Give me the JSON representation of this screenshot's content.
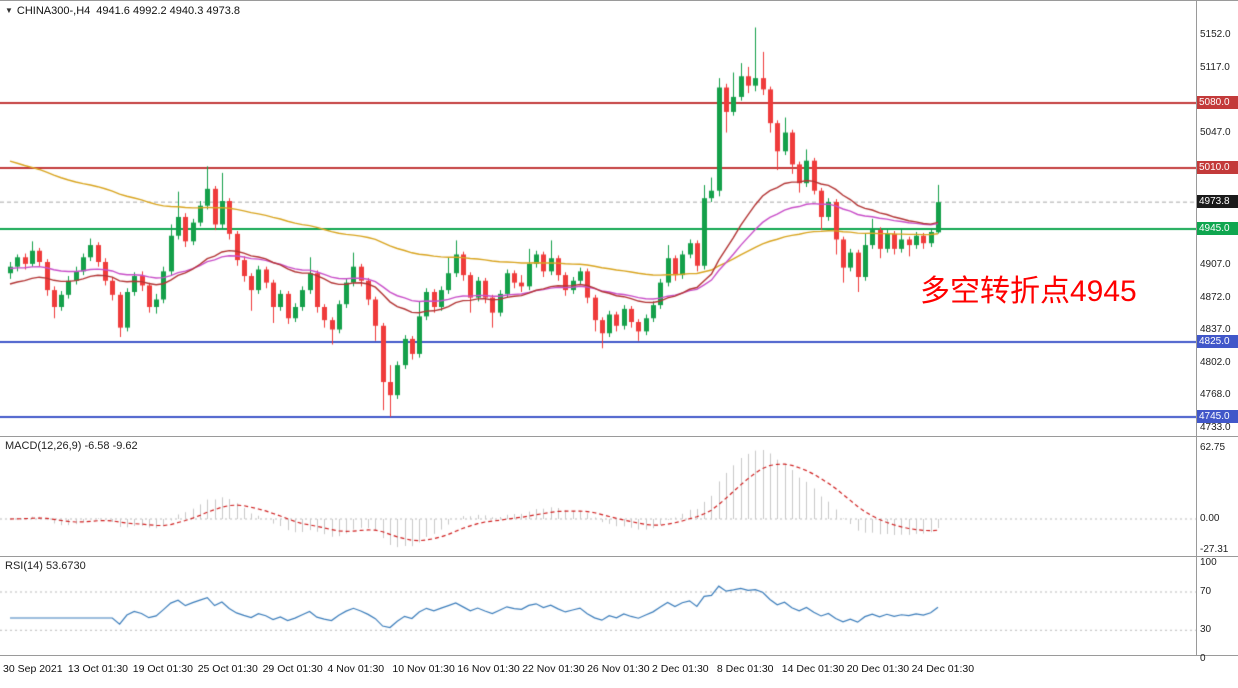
{
  "window": {
    "symbol_line": {
      "symbol": "CHINA300-,H4",
      "ohlc": "4941.6 4992.2 4940.3 4973.8"
    }
  },
  "annotation": {
    "text": "多空转折点4945",
    "color": "#ff0000"
  },
  "chart_data": {
    "type": "candlestick",
    "symbol": "CHINA300",
    "timeframe": "H4",
    "current_bar": {
      "open": 4941.6,
      "high": 4992.2,
      "low": 4940.3,
      "close": 4973.8
    },
    "colors": {
      "candle_up": "#14a04a",
      "candle_down": "#ef3b3b",
      "current_price_line": "#a8a8a8",
      "grid_dotted": "#bbbbbb"
    },
    "price_axis": {
      "plain_labels": [
        5152,
        5117,
        5047,
        4907,
        4872,
        4837,
        4802,
        4768,
        4733
      ],
      "min": 4733,
      "max": 5152
    },
    "levels": [
      {
        "price": 5080,
        "color": "#c33a3a",
        "label": "5080.0"
      },
      {
        "price": 5010,
        "color": "#c33a3a",
        "label": "5010.0"
      },
      {
        "price": 4945,
        "color": "#0fa64f",
        "label": "4945.0"
      },
      {
        "price": 4825,
        "color": "#4157c9",
        "label": "4825.0"
      },
      {
        "price": 4745,
        "color": "#4157c9",
        "label": "4745.0"
      }
    ],
    "current_price": {
      "value": 4973.8,
      "label": "4973.8",
      "badge_color": "#1a1a1a"
    },
    "moving_averages": [
      {
        "name": "ma-slow",
        "color": "#d9a520",
        "alpha": 0.022,
        "seed": 5020
      },
      {
        "name": "ma-mid",
        "color": "#c94fc9",
        "alpha": 0.05,
        "seed": 4903
      },
      {
        "name": "ma-fast",
        "color": "#b33535",
        "alpha": 0.075,
        "seed": 4885
      }
    ],
    "indicators": {
      "macd": {
        "label": "MACD(12,26,9) -6.58 -9.62",
        "params": [
          12,
          26,
          9
        ],
        "macd_value": -6.58,
        "signal_value": -9.62,
        "axis": [
          62.75,
          0.0,
          -27.31
        ],
        "histogram_color": "#c9c9c9",
        "signal_color": "#d02020"
      },
      "rsi": {
        "label": "RSI(14) 53.6730",
        "period": 14,
        "value": 53.673,
        "axis": [
          100,
          70,
          30,
          0
        ],
        "line_color": "#3b7dbb"
      }
    },
    "time_labels": [
      "30 Sep 2021",
      "13 Oct 01:30",
      "19 Oct 01:30",
      "25 Oct 01:30",
      "29 Oct 01:30",
      "4 Nov 01:30",
      "10 Nov 01:30",
      "16 Nov 01:30",
      "22 Nov 01:30",
      "26 Nov 01:30",
      "2 Dec 01:30",
      "8 Dec 01:30",
      "14 Dec 01:30",
      "20 Dec 01:30",
      "24 Dec 01:30"
    ],
    "candles": [
      [
        4898,
        4910,
        4892,
        4905
      ],
      [
        4905,
        4918,
        4900,
        4915
      ],
      [
        4915,
        4919,
        4902,
        4908
      ],
      [
        4908,
        4932,
        4905,
        4922
      ],
      [
        4922,
        4925,
        4905,
        4910
      ],
      [
        4910,
        4913,
        4874,
        4880
      ],
      [
        4880,
        4884,
        4850,
        4862
      ],
      [
        4862,
        4879,
        4858,
        4875
      ],
      [
        4875,
        4895,
        4871,
        4890
      ],
      [
        4890,
        4905,
        4886,
        4900
      ],
      [
        4900,
        4919,
        4896,
        4915
      ],
      [
        4915,
        4935,
        4911,
        4928
      ],
      [
        4928,
        4931,
        4905,
        4910
      ],
      [
        4910,
        4914,
        4885,
        4890
      ],
      [
        4890,
        4894,
        4869,
        4875
      ],
      [
        4875,
        4878,
        4830,
        4840
      ],
      [
        4840,
        4882,
        4836,
        4878
      ],
      [
        4878,
        4899,
        4874,
        4895
      ],
      [
        4895,
        4900,
        4879,
        4885
      ],
      [
        4885,
        4888,
        4856,
        4862
      ],
      [
        4862,
        4876,
        4855,
        4870
      ],
      [
        4870,
        4905,
        4866,
        4900
      ],
      [
        4900,
        4950,
        4896,
        4938
      ],
      [
        4938,
        4985,
        4934,
        4958
      ],
      [
        4958,
        4962,
        4926,
        4932
      ],
      [
        4932,
        4956,
        4928,
        4952
      ],
      [
        4952,
        4975,
        4948,
        4970
      ],
      [
        4970,
        5012,
        4966,
        4988
      ],
      [
        4988,
        4991,
        4944,
        4950
      ],
      [
        4950,
        5005,
        4946,
        4975
      ],
      [
        4975,
        4978,
        4934,
        4940
      ],
      [
        4940,
        4943,
        4906,
        4912
      ],
      [
        4912,
        4916,
        4889,
        4895
      ],
      [
        4895,
        4898,
        4858,
        4880
      ],
      [
        4880,
        4906,
        4876,
        4902
      ],
      [
        4902,
        4905,
        4882,
        4888
      ],
      [
        4888,
        4891,
        4845,
        4862
      ],
      [
        4862,
        4880,
        4858,
        4876
      ],
      [
        4876,
        4879,
        4844,
        4850
      ],
      [
        4850,
        4866,
        4846,
        4862
      ],
      [
        4862,
        4884,
        4858,
        4880
      ],
      [
        4880,
        4915,
        4876,
        4898
      ],
      [
        4898,
        4901,
        4856,
        4862
      ],
      [
        4862,
        4865,
        4840,
        4848
      ],
      [
        4848,
        4851,
        4822,
        4838
      ],
      [
        4838,
        4869,
        4834,
        4865
      ],
      [
        4865,
        4892,
        4861,
        4888
      ],
      [
        4888,
        4920,
        4884,
        4905
      ],
      [
        4905,
        4908,
        4884,
        4890
      ],
      [
        4890,
        4893,
        4864,
        4870
      ],
      [
        4870,
        4873,
        4826,
        4842
      ],
      [
        4842,
        4845,
        4752,
        4782
      ],
      [
        4782,
        4800,
        4745,
        4768
      ],
      [
        4768,
        4804,
        4764,
        4800
      ],
      [
        4800,
        4832,
        4796,
        4828
      ],
      [
        4828,
        4831,
        4806,
        4812
      ],
      [
        4812,
        4868,
        4808,
        4852
      ],
      [
        4852,
        4882,
        4848,
        4878
      ],
      [
        4878,
        4881,
        4856,
        4862
      ],
      [
        4862,
        4884,
        4858,
        4880
      ],
      [
        4880,
        4915,
        4876,
        4898
      ],
      [
        4898,
        4933,
        4894,
        4918
      ],
      [
        4918,
        4921,
        4890,
        4896
      ],
      [
        4896,
        4899,
        4856,
        4872
      ],
      [
        4872,
        4894,
        4868,
        4890
      ],
      [
        4890,
        4893,
        4866,
        4872
      ],
      [
        4872,
        4875,
        4840,
        4856
      ],
      [
        4856,
        4880,
        4852,
        4876
      ],
      [
        4876,
        4902,
        4872,
        4898
      ],
      [
        4898,
        4901,
        4882,
        4888
      ],
      [
        4888,
        4896,
        4878,
        4884
      ],
      [
        4884,
        4924,
        4880,
        4908
      ],
      [
        4908,
        4922,
        4904,
        4918
      ],
      [
        4918,
        4921,
        4894,
        4900
      ],
      [
        4900,
        4933,
        4896,
        4914
      ],
      [
        4914,
        4917,
        4890,
        4896
      ],
      [
        4896,
        4899,
        4874,
        4880
      ],
      [
        4880,
        4894,
        4876,
        4890
      ],
      [
        4890,
        4904,
        4886,
        4900
      ],
      [
        4900,
        4903,
        4866,
        4872
      ],
      [
        4872,
        4875,
        4836,
        4848
      ],
      [
        4848,
        4851,
        4818,
        4834
      ],
      [
        4834,
        4858,
        4830,
        4854
      ],
      [
        4854,
        4857,
        4836,
        4842
      ],
      [
        4842,
        4864,
        4838,
        4860
      ],
      [
        4860,
        4863,
        4840,
        4846
      ],
      [
        4846,
        4849,
        4826,
        4836
      ],
      [
        4836,
        4854,
        4832,
        4850
      ],
      [
        4850,
        4868,
        4846,
        4864
      ],
      [
        4864,
        4892,
        4860,
        4888
      ],
      [
        4888,
        4928,
        4884,
        4914
      ],
      [
        4914,
        4917,
        4890,
        4896
      ],
      [
        4896,
        4922,
        4892,
        4918
      ],
      [
        4918,
        4934,
        4914,
        4930
      ],
      [
        4930,
        4933,
        4900,
        4906
      ],
      [
        4906,
        4992,
        4902,
        4978
      ],
      [
        4978,
        5000,
        4974,
        4986
      ],
      [
        4986,
        5106,
        4980,
        5096
      ],
      [
        5096,
        5100,
        5048,
        5070
      ],
      [
        5070,
        5112,
        5066,
        5086
      ],
      [
        5086,
        5122,
        5082,
        5108
      ],
      [
        5108,
        5118,
        5090,
        5098
      ],
      [
        5098,
        5160,
        5092,
        5106
      ],
      [
        5106,
        5134,
        5088,
        5094
      ],
      [
        5094,
        5097,
        5048,
        5058
      ],
      [
        5058,
        5061,
        5008,
        5028
      ],
      [
        5028,
        5064,
        5024,
        5048
      ],
      [
        5048,
        5051,
        5004,
        5014
      ],
      [
        5014,
        5017,
        4984,
        4994
      ],
      [
        4994,
        5030,
        4990,
        5018
      ],
      [
        5018,
        5021,
        4982,
        4986
      ],
      [
        4986,
        4989,
        4944,
        4958
      ],
      [
        4958,
        4978,
        4954,
        4974
      ],
      [
        4974,
        4977,
        4918,
        4934
      ],
      [
        4934,
        4937,
        4888,
        4904
      ],
      [
        4904,
        4924,
        4900,
        4920
      ],
      [
        4920,
        4923,
        4878,
        4894
      ],
      [
        4894,
        4940,
        4890,
        4928
      ],
      [
        4928,
        4956,
        4924,
        4944
      ],
      [
        4944,
        4947,
        4914,
        4924
      ],
      [
        4924,
        4944,
        4920,
        4940
      ],
      [
        4940,
        4943,
        4918,
        4924
      ],
      [
        4924,
        4946,
        4920,
        4934
      ],
      [
        4934,
        4937,
        4916,
        4928
      ],
      [
        4928,
        4942,
        4924,
        4938
      ],
      [
        4938,
        4941,
        4924,
        4930
      ],
      [
        4930,
        4946,
        4926,
        4942
      ],
      [
        4941.6,
        4992.2,
        4940.3,
        4973.8
      ]
    ]
  }
}
